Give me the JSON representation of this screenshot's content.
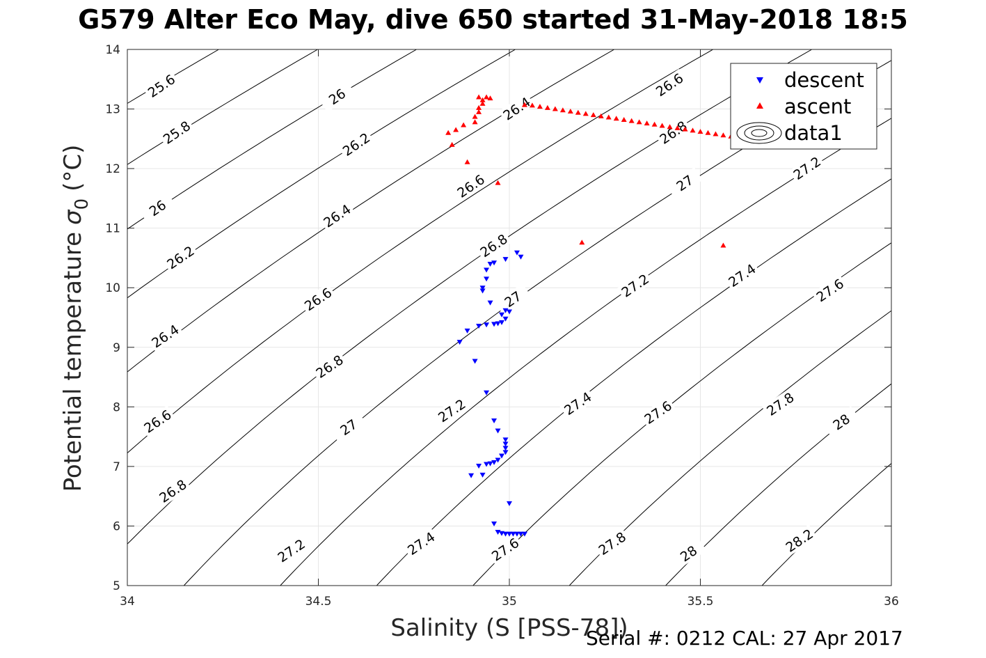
{
  "page": {
    "title": "G579 Alter Eco May, dive 650 started 31-May-2018 18:5",
    "footer": "Serial #: 0212  CAL: 27 Apr 2017"
  },
  "chart_data": {
    "type": "scatter",
    "title": "G579 Alter Eco May, dive 650 started 31-May-2018 18:5",
    "xlabel": "Salinity (S [PSS-78])",
    "ylabel": "Potential temperature",
    "ylabel_symbol": "σ",
    "ylabel_subscript": "0",
    "ylabel_unit": "(°C)",
    "xlim": [
      34,
      36
    ],
    "ylim": [
      5,
      14
    ],
    "x_ticks": [
      34,
      34.5,
      35,
      35.5,
      36
    ],
    "x_tick_labels": [
      "34",
      "34.5",
      "35",
      "35.5",
      "36"
    ],
    "y_ticks": [
      5,
      6,
      7,
      8,
      9,
      10,
      11,
      12,
      13,
      14
    ],
    "y_tick_labels": [
      "5",
      "6",
      "7",
      "8",
      "9",
      "10",
      "11",
      "12",
      "13",
      "14"
    ],
    "grid": true,
    "legend_position": "top-right",
    "legend": [
      "descent",
      "ascent",
      "data1"
    ],
    "series": [
      {
        "name": "descent",
        "color": "#0000ff",
        "marker": "triangle-down",
        "points": [
          [
            35.02,
            10.59
          ],
          [
            35.03,
            10.52
          ],
          [
            34.99,
            10.48
          ],
          [
            34.96,
            10.42
          ],
          [
            34.95,
            10.4
          ],
          [
            34.94,
            10.3
          ],
          [
            34.94,
            10.15
          ],
          [
            34.93,
            10.0
          ],
          [
            34.93,
            9.95
          ],
          [
            34.95,
            9.75
          ],
          [
            34.99,
            9.62
          ],
          [
            35.0,
            9.6
          ],
          [
            34.98,
            9.55
          ],
          [
            34.99,
            9.48
          ],
          [
            34.98,
            9.42
          ],
          [
            34.97,
            9.4
          ],
          [
            34.96,
            9.39
          ],
          [
            34.94,
            9.38
          ],
          [
            34.92,
            9.36
          ],
          [
            34.89,
            9.28
          ],
          [
            34.87,
            9.09
          ],
          [
            34.91,
            8.77
          ],
          [
            34.94,
            8.24
          ],
          [
            34.96,
            7.77
          ],
          [
            34.97,
            7.6
          ],
          [
            34.99,
            7.45
          ],
          [
            34.99,
            7.38
          ],
          [
            34.99,
            7.31
          ],
          [
            34.99,
            7.24
          ],
          [
            34.98,
            7.18
          ],
          [
            34.97,
            7.11
          ],
          [
            34.96,
            7.07
          ],
          [
            34.95,
            7.05
          ],
          [
            34.94,
            7.04
          ],
          [
            34.92,
            7.01
          ],
          [
            34.9,
            6.85
          ],
          [
            34.93,
            6.86
          ],
          [
            35.0,
            6.38
          ],
          [
            34.96,
            6.04
          ],
          [
            34.97,
            5.9
          ],
          [
            34.98,
            5.88
          ],
          [
            34.99,
            5.87
          ],
          [
            35.0,
            5.87
          ],
          [
            35.01,
            5.87
          ],
          [
            35.02,
            5.87
          ],
          [
            35.03,
            5.87
          ],
          [
            35.04,
            5.87
          ]
        ]
      },
      {
        "name": "ascent",
        "color": "#ff0000",
        "marker": "triangle-up",
        "points": [
          [
            34.85,
            12.4
          ],
          [
            34.84,
            12.6
          ],
          [
            34.86,
            12.65
          ],
          [
            34.88,
            12.73
          ],
          [
            34.91,
            12.78
          ],
          [
            34.91,
            12.87
          ],
          [
            34.92,
            12.95
          ],
          [
            34.92,
            13.02
          ],
          [
            34.93,
            13.09
          ],
          [
            34.93,
            13.15
          ],
          [
            34.92,
            13.2
          ],
          [
            34.94,
            13.2
          ],
          [
            34.95,
            13.18
          ],
          [
            34.89,
            12.11
          ],
          [
            34.97,
            11.76
          ],
          [
            35.19,
            10.76
          ],
          [
            35.56,
            10.71
          ],
          [
            35.04,
            13.07
          ],
          [
            35.06,
            13.06
          ],
          [
            35.08,
            13.04
          ],
          [
            35.1,
            13.02
          ],
          [
            35.12,
            13.0
          ],
          [
            35.14,
            12.98
          ],
          [
            35.16,
            12.96
          ],
          [
            35.18,
            12.94
          ],
          [
            35.2,
            12.92
          ],
          [
            35.22,
            12.9
          ],
          [
            35.24,
            12.88
          ],
          [
            35.26,
            12.86
          ],
          [
            35.28,
            12.84
          ],
          [
            35.3,
            12.82
          ],
          [
            35.32,
            12.8
          ],
          [
            35.34,
            12.78
          ],
          [
            35.36,
            12.76
          ],
          [
            35.38,
            12.74
          ],
          [
            35.4,
            12.72
          ],
          [
            35.42,
            12.7
          ],
          [
            35.44,
            12.68
          ],
          [
            35.46,
            12.66
          ],
          [
            35.48,
            12.64
          ],
          [
            35.5,
            12.62
          ],
          [
            35.52,
            12.6
          ],
          [
            35.54,
            12.58
          ],
          [
            35.56,
            12.56
          ],
          [
            35.58,
            12.54
          ],
          [
            35.6,
            12.52
          ],
          [
            35.62,
            12.5
          ]
        ]
      }
    ],
    "contours": {
      "name": "data1",
      "color": "#000000",
      "levels": [
        25.6,
        25.8,
        26,
        26.2,
        26.4,
        26.6,
        26.8,
        27,
        27.2,
        27.4,
        27.6,
        27.8,
        28,
        28.2
      ],
      "labels": [
        {
          "text": "25.6",
          "s": 34.09,
          "t": 13.38
        },
        {
          "text": "25.8",
          "s": 34.13,
          "t": 12.6
        },
        {
          "text": "26",
          "s": 34.55,
          "t": 13.2
        },
        {
          "text": "26",
          "s": 34.08,
          "t": 11.33
        },
        {
          "text": "26.2",
          "s": 34.6,
          "t": 12.4
        },
        {
          "text": "26.2",
          "s": 34.14,
          "t": 10.5
        },
        {
          "text": "26.4",
          "s": 35.02,
          "t": 13.0
        },
        {
          "text": "26.4",
          "s": 34.55,
          "t": 11.2
        },
        {
          "text": "26.4",
          "s": 34.1,
          "t": 9.18
        },
        {
          "text": "26.6",
          "s": 35.42,
          "t": 13.4
        },
        {
          "text": "26.6",
          "s": 34.9,
          "t": 11.7
        },
        {
          "text": "26.6",
          "s": 34.5,
          "t": 9.8
        },
        {
          "text": "26.6",
          "s": 34.08,
          "t": 7.75
        },
        {
          "text": "26.8",
          "s": 35.43,
          "t": 12.6
        },
        {
          "text": "26.8",
          "s": 34.96,
          "t": 10.7
        },
        {
          "text": "26.8",
          "s": 34.53,
          "t": 8.67
        },
        {
          "text": "26.8",
          "s": 34.12,
          "t": 6.58
        },
        {
          "text": "27",
          "s": 35.46,
          "t": 11.75
        },
        {
          "text": "27",
          "s": 35.01,
          "t": 9.8
        },
        {
          "text": "27",
          "s": 34.58,
          "t": 7.65
        },
        {
          "text": "27.2",
          "s": 35.78,
          "t": 12.0
        },
        {
          "text": "27.2",
          "s": 35.33,
          "t": 10.03
        },
        {
          "text": "27.2",
          "s": 34.85,
          "t": 7.93
        },
        {
          "text": "27.2",
          "s": 34.43,
          "t": 5.58
        },
        {
          "text": "27.4",
          "s": 35.61,
          "t": 10.2
        },
        {
          "text": "27.4",
          "s": 35.18,
          "t": 8.05
        },
        {
          "text": "27.4",
          "s": 34.77,
          "t": 5.7
        },
        {
          "text": "27.6",
          "s": 35.84,
          "t": 9.95
        },
        {
          "text": "27.6",
          "s": 35.39,
          "t": 7.9
        },
        {
          "text": "27.6",
          "s": 34.99,
          "t": 5.6
        },
        {
          "text": "27.8",
          "s": 35.71,
          "t": 8.04
        },
        {
          "text": "27.8",
          "s": 35.27,
          "t": 5.7
        },
        {
          "text": "28",
          "s": 35.87,
          "t": 7.74
        },
        {
          "text": "28",
          "s": 35.47,
          "t": 5.53
        },
        {
          "text": "28.2",
          "s": 35.76,
          "t": 5.75
        }
      ]
    }
  }
}
